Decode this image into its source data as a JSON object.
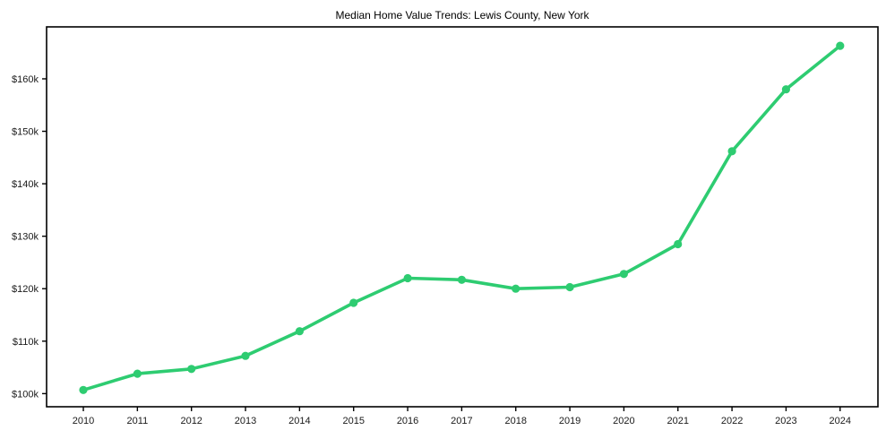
{
  "chart_data": {
    "type": "line",
    "title": "Median Home Value Trends: Lewis County, New York",
    "xlabel": "",
    "ylabel": "",
    "x": [
      2010,
      2011,
      2012,
      2013,
      2014,
      2015,
      2016,
      2017,
      2018,
      2019,
      2020,
      2021,
      2022,
      2023,
      2024
    ],
    "x_tick_labels": [
      "2010",
      "2011",
      "2012",
      "2013",
      "2014",
      "2015",
      "2016",
      "2017",
      "2018",
      "2019",
      "2020",
      "2021",
      "2022",
      "2023",
      "2024"
    ],
    "series": [
      {
        "name": "Median Home Value",
        "values": [
          100700,
          103800,
          104700,
          107200,
          111900,
          117300,
          122000,
          121700,
          120000,
          120300,
          122800,
          128500,
          146200,
          158000,
          166300
        ]
      }
    ],
    "y_ticks": [
      {
        "value": 100000,
        "label": "$100k"
      },
      {
        "value": 110000,
        "label": "$110k"
      },
      {
        "value": 120000,
        "label": "$120k"
      },
      {
        "value": 130000,
        "label": "$130k"
      },
      {
        "value": 140000,
        "label": "$140k"
      },
      {
        "value": 150000,
        "label": "$150k"
      },
      {
        "value": 160000,
        "label": "$160k"
      }
    ],
    "xlim": [
      2009.32,
      2024.7
    ],
    "ylim": [
      97500,
      169900
    ],
    "grid": false,
    "legend": "none",
    "marker": "circle",
    "line_color": "#2ecc71",
    "background_color": "#ffffff",
    "axis_color": "#000000",
    "tick_label_color": "#1a1a1a"
  }
}
